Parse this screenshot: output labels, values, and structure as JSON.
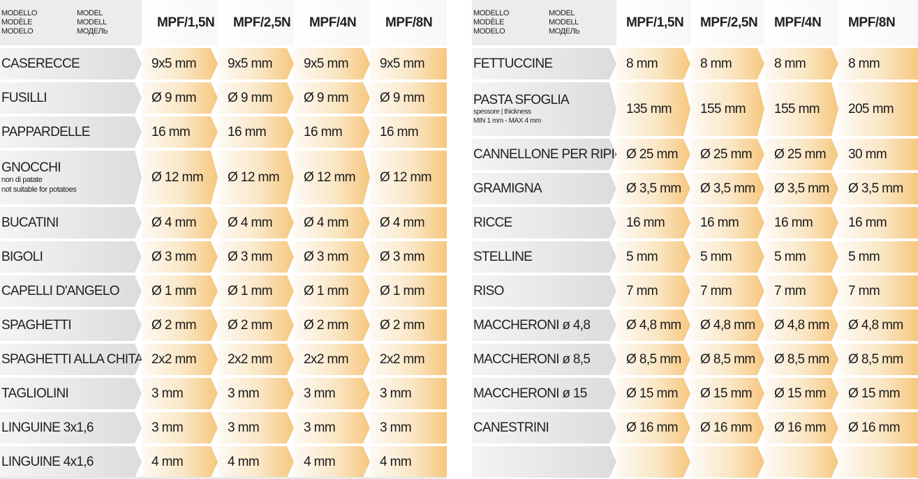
{
  "header": {
    "model_labels": [
      "MODELLO",
      "MODEL",
      "MODÈLE",
      "MODELL",
      "MODELO",
      "МОДЕЛЬ"
    ],
    "models": [
      "MPF/1,5N",
      "MPF/2,5N",
      "MPF/4N",
      "MPF/8N"
    ]
  },
  "left_rows": [
    {
      "name": "CASERECCE",
      "values": [
        "9x5 mm",
        "9x5 mm",
        "9x5 mm",
        "9x5 mm"
      ]
    },
    {
      "name": "FUSILLI",
      "values": [
        "Ø 9 mm",
        "Ø 9 mm",
        "Ø 9 mm",
        "Ø 9 mm"
      ]
    },
    {
      "name": "PAPPARDELLE",
      "values": [
        "16 mm",
        "16 mm",
        "16 mm",
        "16 mm"
      ]
    },
    {
      "name": "GNOCCHI",
      "note1": "non di patate",
      "note2": "not suitable for potatoes",
      "values": [
        "Ø 12 mm",
        "Ø 12 mm",
        "Ø 12 mm",
        "Ø 12 mm"
      ]
    },
    {
      "name": "BUCATINI",
      "values": [
        "Ø 4 mm",
        "Ø 4 mm",
        "Ø 4 mm",
        "Ø 4 mm"
      ]
    },
    {
      "name": "BIGOLI",
      "values": [
        "Ø 3 mm",
        "Ø 3 mm",
        "Ø 3 mm",
        "Ø 3 mm"
      ]
    },
    {
      "name": "CAPELLI D'ANGELO",
      "values": [
        "Ø 1 mm",
        "Ø 1 mm",
        "Ø 1 mm",
        "Ø 1 mm"
      ]
    },
    {
      "name": "SPAGHETTI",
      "values": [
        "Ø 2 mm",
        "Ø 2 mm",
        "Ø 2 mm",
        "Ø 2 mm"
      ]
    },
    {
      "name": "SPAGHETTI ALLA CHITARRA",
      "values": [
        "2x2 mm",
        "2x2 mm",
        "2x2 mm",
        "2x2 mm"
      ]
    },
    {
      "name": "TAGLIOLINI",
      "values": [
        "3 mm",
        "3 mm",
        "3 mm",
        "3 mm"
      ]
    },
    {
      "name": "LINGUINE 3x1,6",
      "values": [
        "3 mm",
        "3 mm",
        "3 mm",
        "3 mm"
      ]
    },
    {
      "name": "LINGUINE 4x1,6",
      "values": [
        "4 mm",
        "4 mm",
        "4 mm",
        "4 mm"
      ]
    }
  ],
  "right_rows": [
    {
      "name": "FETTUCCINE",
      "values": [
        "8 mm",
        "8 mm",
        "8 mm",
        "8 mm"
      ]
    },
    {
      "name": "PASTA SFOGLIA",
      "note1": "spessore | thickness",
      "note2": "MIN 1 mm - MAX 4 mm",
      "values": [
        "135 mm",
        "155 mm",
        "155 mm",
        "205 mm"
      ]
    },
    {
      "name": "CANNELLONE PER RIPIENO",
      "values": [
        "Ø 25 mm",
        "Ø 25 mm",
        "Ø 25 mm",
        "30 mm"
      ]
    },
    {
      "name": "GRAMIGNA",
      "values": [
        "Ø 3,5 mm",
        "Ø 3,5 mm",
        "Ø 3,5 mm",
        "Ø 3,5 mm"
      ]
    },
    {
      "name": "RICCE",
      "values": [
        "16 mm",
        "16 mm",
        "16 mm",
        "16 mm"
      ]
    },
    {
      "name": "STELLINE",
      "values": [
        "5 mm",
        "5 mm",
        "5 mm",
        "5 mm"
      ]
    },
    {
      "name": "RISO",
      "values": [
        "7 mm",
        "7 mm",
        "7 mm",
        "7 mm"
      ]
    },
    {
      "name": "MACCHERONI ø 4,8",
      "values": [
        "Ø 4,8 mm",
        "Ø 4,8 mm",
        "Ø 4,8 mm",
        "Ø 4,8 mm"
      ]
    },
    {
      "name": "MACCHERONI ø 8,5",
      "values": [
        "Ø 8,5 mm",
        "Ø 8,5 mm",
        "Ø 8,5 mm",
        "Ø 8,5 mm"
      ]
    },
    {
      "name": "MACCHERONI ø 15",
      "values": [
        "Ø 15 mm",
        "Ø 15 mm",
        "Ø 15 mm",
        "Ø 15 mm"
      ]
    },
    {
      "name": "CANESTRINI",
      "values": [
        "Ø 16 mm",
        "Ø 16 mm",
        "Ø 16 mm",
        "Ø 16 mm"
      ]
    },
    {
      "name": "",
      "values": [
        "",
        "",
        "",
        ""
      ]
    }
  ]
}
